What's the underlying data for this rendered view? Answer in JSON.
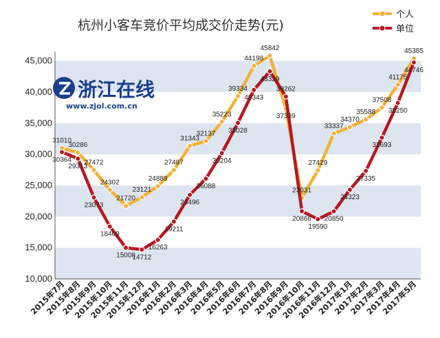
{
  "logo": {
    "name": "浙江在线",
    "url": "www.zjol.com.cn"
  },
  "chart_data": {
    "type": "line",
    "title": "杭州小客车竞价平均成交价走势(元)",
    "categories": [
      "2015年7月",
      "2015年8月",
      "2015年9月",
      "2015年10月",
      "2015年11月",
      "2015年12月",
      "2016年1月",
      "2016年2月",
      "2016年3月",
      "2016年4月",
      "2016年5月",
      "2016年6月",
      "2016年7月",
      "2016年8月",
      "2016年9月",
      "2016年10月",
      "2016年11月",
      "2016年12月",
      "2017年1月",
      "2017年2月",
      "2017年3月",
      "2017年4月",
      "2017年5月"
    ],
    "y_ticks": [
      "10,000",
      "15,000",
      "20,000",
      "25,000",
      "30,000",
      "35,000",
      "40,000",
      "45,000"
    ],
    "ylim": [
      10000,
      46500
    ],
    "series": [
      {
        "name": "个人",
        "color": "#f2b134",
        "values": [
          31010,
          30286,
          27472,
          24302,
          21720,
          23121,
          24888,
          27487,
          31343,
          32137,
          35223,
          39334,
          44198,
          45842,
          37339,
          23031,
          27429,
          33337,
          34370,
          35588,
          37508,
          41175,
          45385
        ]
      },
      {
        "name": "单位",
        "color": "#b81820",
        "values": [
          30364,
          29313,
          23073,
          18409,
          15008,
          14712,
          16263,
          19211,
          23496,
          26088,
          30204,
          35028,
          40343,
          43329,
          39262,
          20866,
          19590,
          20850,
          24323,
          27335,
          32693,
          38250,
          44746
        ]
      }
    ],
    "legend_position": "top-right",
    "grid": "alternating horizontal bands"
  }
}
